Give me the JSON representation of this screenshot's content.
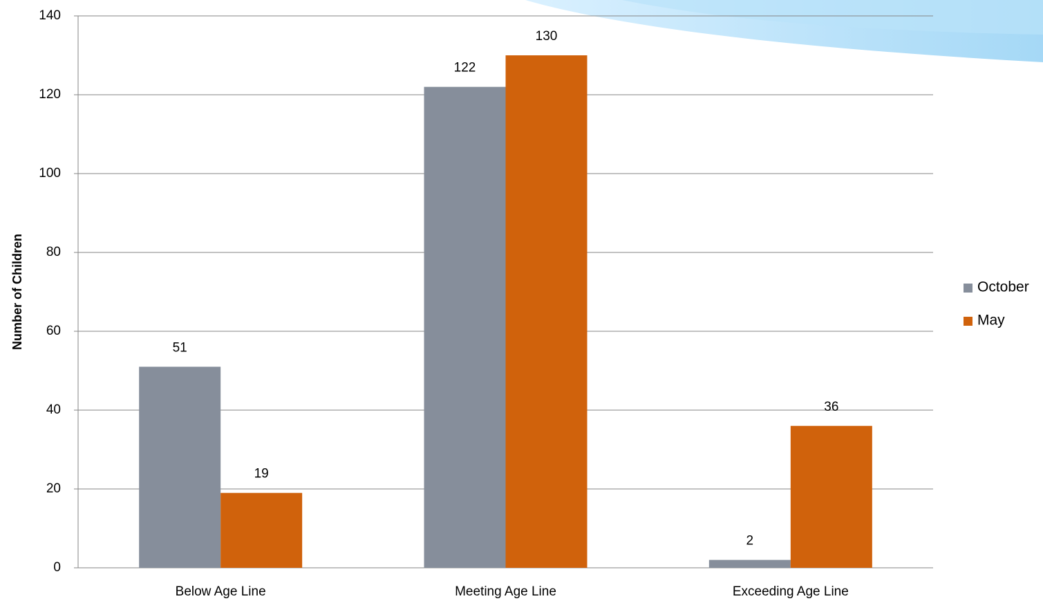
{
  "chart_data": {
    "type": "bar",
    "y_label": "Number of Children",
    "categories": [
      "Below Age Line",
      "Meeting Age Line",
      "Exceeding Age Line"
    ],
    "series": [
      {
        "name": "October",
        "color": "#868e9b",
        "values": [
          51,
          122,
          2
        ]
      },
      {
        "name": "May",
        "color": "#d0620c",
        "values": [
          19,
          130,
          36
        ]
      }
    ],
    "ylim": [
      0,
      140
    ],
    "yticks": [
      0,
      20,
      40,
      60,
      80,
      100,
      120,
      140
    ],
    "grid": true,
    "legend": "right"
  }
}
